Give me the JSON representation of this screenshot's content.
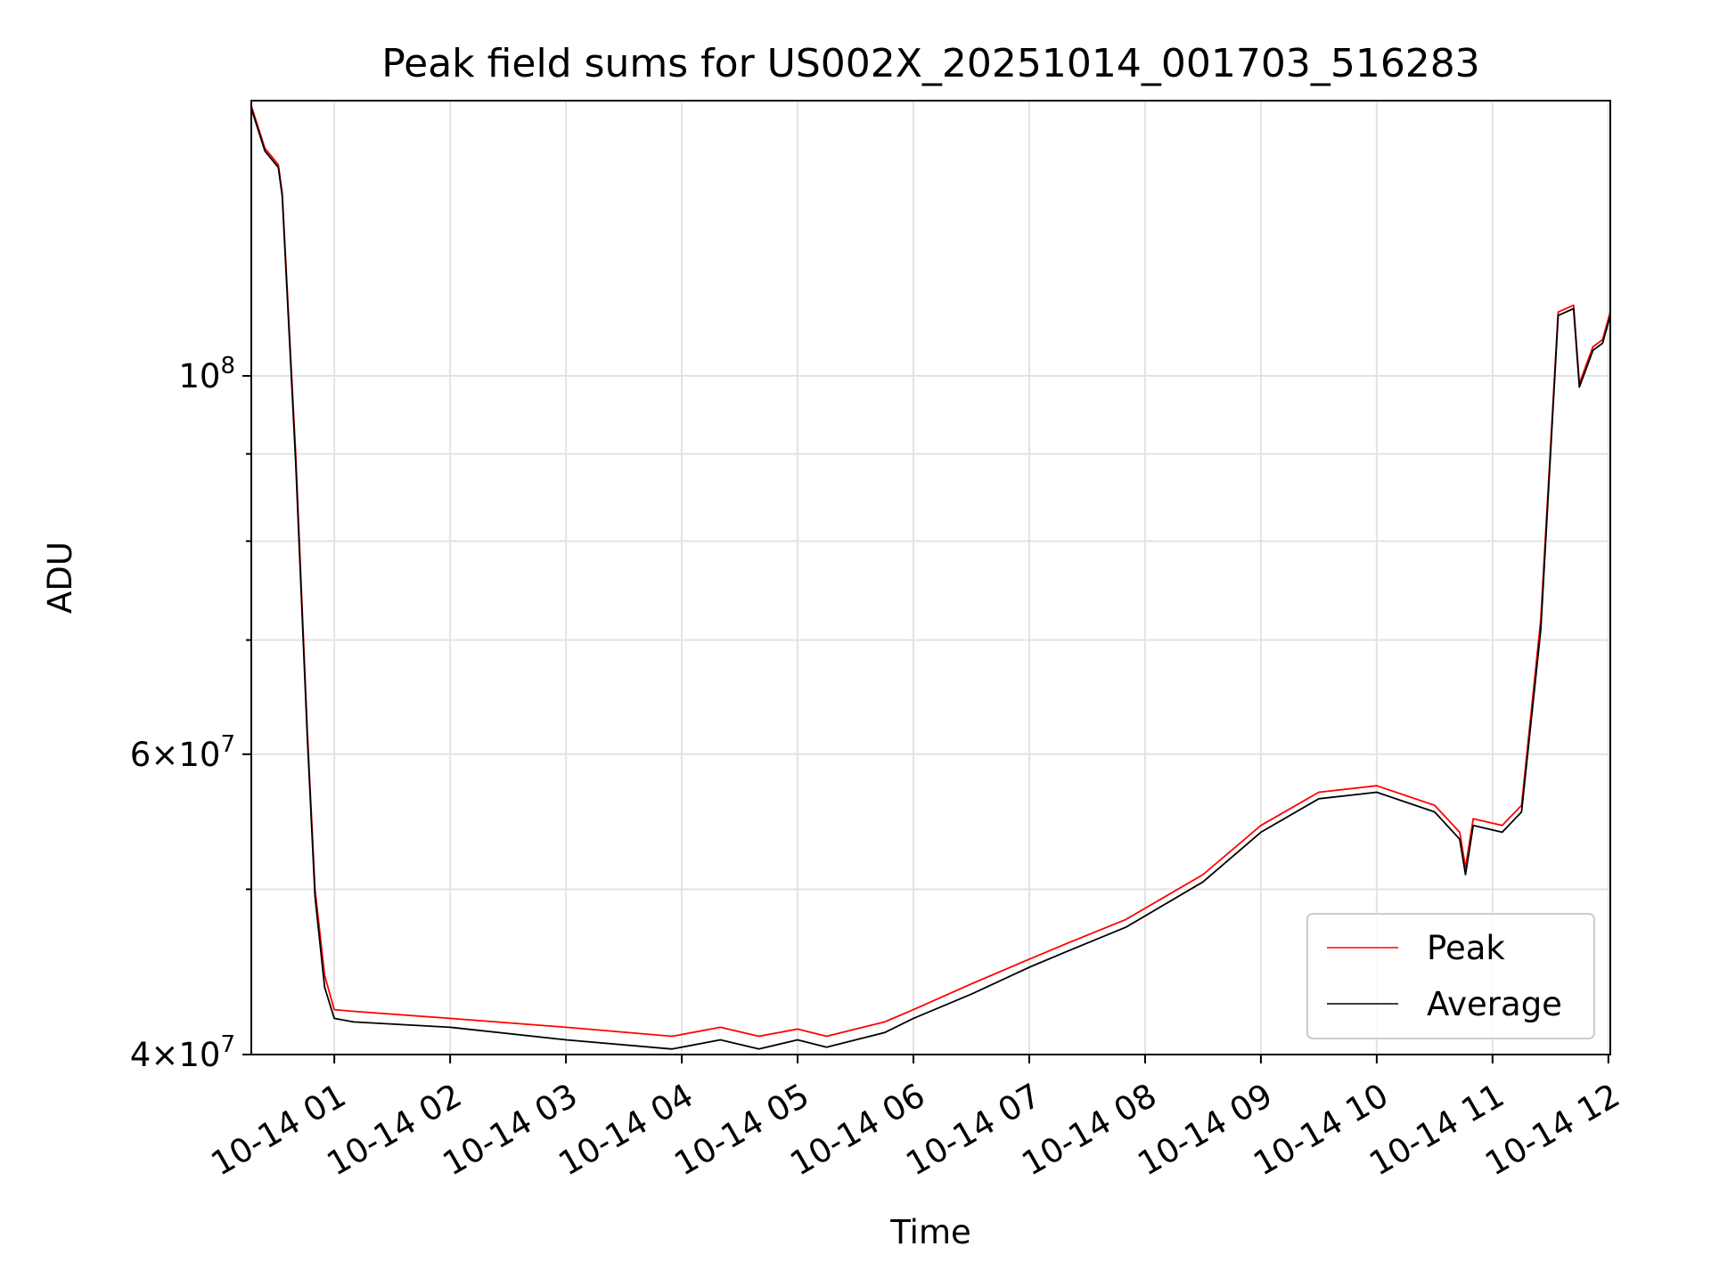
{
  "chart_data": {
    "type": "line",
    "title": "Peak field sums for US002X_20251014_001703_516283",
    "xlabel": "Time",
    "ylabel": "ADU",
    "y_scale": "log",
    "ylim": [
      40000000,
      145000000
    ],
    "xlim": [
      "2025-10-14T00:17",
      "2025-10-14T12:01"
    ],
    "x_ticks": [
      {
        "value": "2025-10-14T01:00",
        "label": "10-14 01"
      },
      {
        "value": "2025-10-14T02:00",
        "label": "10-14 02"
      },
      {
        "value": "2025-10-14T03:00",
        "label": "10-14 03"
      },
      {
        "value": "2025-10-14T04:00",
        "label": "10-14 04"
      },
      {
        "value": "2025-10-14T05:00",
        "label": "10-14 05"
      },
      {
        "value": "2025-10-14T06:00",
        "label": "10-14 06"
      },
      {
        "value": "2025-10-14T07:00",
        "label": "10-14 07"
      },
      {
        "value": "2025-10-14T08:00",
        "label": "10-14 08"
      },
      {
        "value": "2025-10-14T09:00",
        "label": "10-14 09"
      },
      {
        "value": "2025-10-14T10:00",
        "label": "10-14 10"
      },
      {
        "value": "2025-10-14T11:00",
        "label": "10-14 11"
      },
      {
        "value": "2025-10-14T12:00",
        "label": "10-14 12"
      }
    ],
    "y_ticks_major": [
      {
        "value": 40000000,
        "label_mantissa": "4",
        "label_base": "10",
        "label_exp": "7"
      },
      {
        "value": 60000000,
        "label_mantissa": "6",
        "label_base": "10",
        "label_exp": "7"
      },
      {
        "value": 100000000,
        "label_mantissa": "",
        "label_base": "10",
        "label_exp": "8"
      }
    ],
    "y_ticks_minor": [
      50000000,
      70000000,
      80000000,
      90000000
    ],
    "grid": true,
    "legend_position": "lower-right",
    "series": [
      {
        "name": "Peak",
        "color": "#ff0000",
        "points": [
          [
            "2025-10-14T00:17",
            144000000
          ],
          [
            "2025-10-14T00:24",
            136000000
          ],
          [
            "2025-10-14T00:31",
            133000000
          ],
          [
            "2025-10-14T00:33",
            128000000
          ],
          [
            "2025-10-14T00:40",
            90000000
          ],
          [
            "2025-10-14T00:46",
            62000000
          ],
          [
            "2025-10-14T00:50",
            50000000
          ],
          [
            "2025-10-14T00:55",
            44500000
          ],
          [
            "2025-10-14T01:00",
            42500000
          ],
          [
            "2025-10-14T01:10",
            42400000
          ],
          [
            "2025-10-14T02:00",
            42000000
          ],
          [
            "2025-10-14T03:00",
            41500000
          ],
          [
            "2025-10-14T03:55",
            41000000
          ],
          [
            "2025-10-14T04:20",
            41500000
          ],
          [
            "2025-10-14T04:40",
            41000000
          ],
          [
            "2025-10-14T05:00",
            41400000
          ],
          [
            "2025-10-14T05:15",
            41000000
          ],
          [
            "2025-10-14T05:45",
            41800000
          ],
          [
            "2025-10-14T06:00",
            42500000
          ],
          [
            "2025-10-14T06:30",
            44000000
          ],
          [
            "2025-10-14T07:00",
            45500000
          ],
          [
            "2025-10-14T07:20",
            46500000
          ],
          [
            "2025-10-14T07:50",
            48000000
          ],
          [
            "2025-10-14T08:30",
            51000000
          ],
          [
            "2025-10-14T09:00",
            54500000
          ],
          [
            "2025-10-14T09:30",
            57000000
          ],
          [
            "2025-10-14T10:00",
            57500000
          ],
          [
            "2025-10-14T10:30",
            56000000
          ],
          [
            "2025-10-14T10:43",
            54000000
          ],
          [
            "2025-10-14T10:46",
            51500000
          ],
          [
            "2025-10-14T10:50",
            55000000
          ],
          [
            "2025-10-14T11:05",
            54500000
          ],
          [
            "2025-10-14T11:15",
            56000000
          ],
          [
            "2025-10-14T11:25",
            72000000
          ],
          [
            "2025-10-14T11:34",
            109000000
          ],
          [
            "2025-10-14T11:42",
            110000000
          ],
          [
            "2025-10-14T11:45",
            99000000
          ],
          [
            "2025-10-14T11:52",
            104000000
          ],
          [
            "2025-10-14T11:57",
            105000000
          ],
          [
            "2025-10-14T12:01",
            109000000
          ]
        ]
      },
      {
        "name": "Average",
        "color": "#000000",
        "points": [
          [
            "2025-10-14T00:17",
            143500000
          ],
          [
            "2025-10-14T00:24",
            135500000
          ],
          [
            "2025-10-14T00:31",
            132500000
          ],
          [
            "2025-10-14T00:33",
            127500000
          ],
          [
            "2025-10-14T00:40",
            89000000
          ],
          [
            "2025-10-14T00:46",
            61500000
          ],
          [
            "2025-10-14T00:50",
            49500000
          ],
          [
            "2025-10-14T00:55",
            43800000
          ],
          [
            "2025-10-14T01:00",
            42000000
          ],
          [
            "2025-10-14T01:10",
            41800000
          ],
          [
            "2025-10-14T02:00",
            41500000
          ],
          [
            "2025-10-14T03:00",
            40800000
          ],
          [
            "2025-10-14T03:55",
            40300000
          ],
          [
            "2025-10-14T04:20",
            40800000
          ],
          [
            "2025-10-14T04:40",
            40300000
          ],
          [
            "2025-10-14T05:00",
            40800000
          ],
          [
            "2025-10-14T05:15",
            40400000
          ],
          [
            "2025-10-14T05:45",
            41200000
          ],
          [
            "2025-10-14T06:00",
            42000000
          ],
          [
            "2025-10-14T06:30",
            43400000
          ],
          [
            "2025-10-14T07:00",
            45000000
          ],
          [
            "2025-10-14T07:20",
            46000000
          ],
          [
            "2025-10-14T07:50",
            47500000
          ],
          [
            "2025-10-14T08:30",
            50500000
          ],
          [
            "2025-10-14T09:00",
            54000000
          ],
          [
            "2025-10-14T09:30",
            56500000
          ],
          [
            "2025-10-14T10:00",
            57000000
          ],
          [
            "2025-10-14T10:30",
            55500000
          ],
          [
            "2025-10-14T10:43",
            53500000
          ],
          [
            "2025-10-14T10:46",
            51000000
          ],
          [
            "2025-10-14T10:50",
            54500000
          ],
          [
            "2025-10-14T11:05",
            54000000
          ],
          [
            "2025-10-14T11:15",
            55500000
          ],
          [
            "2025-10-14T11:25",
            71000000
          ],
          [
            "2025-10-14T11:34",
            108500000
          ],
          [
            "2025-10-14T11:42",
            109500000
          ],
          [
            "2025-10-14T11:45",
            98500000
          ],
          [
            "2025-10-14T11:52",
            103500000
          ],
          [
            "2025-10-14T11:57",
            104500000
          ],
          [
            "2025-10-14T12:01",
            108500000
          ]
        ]
      }
    ]
  }
}
